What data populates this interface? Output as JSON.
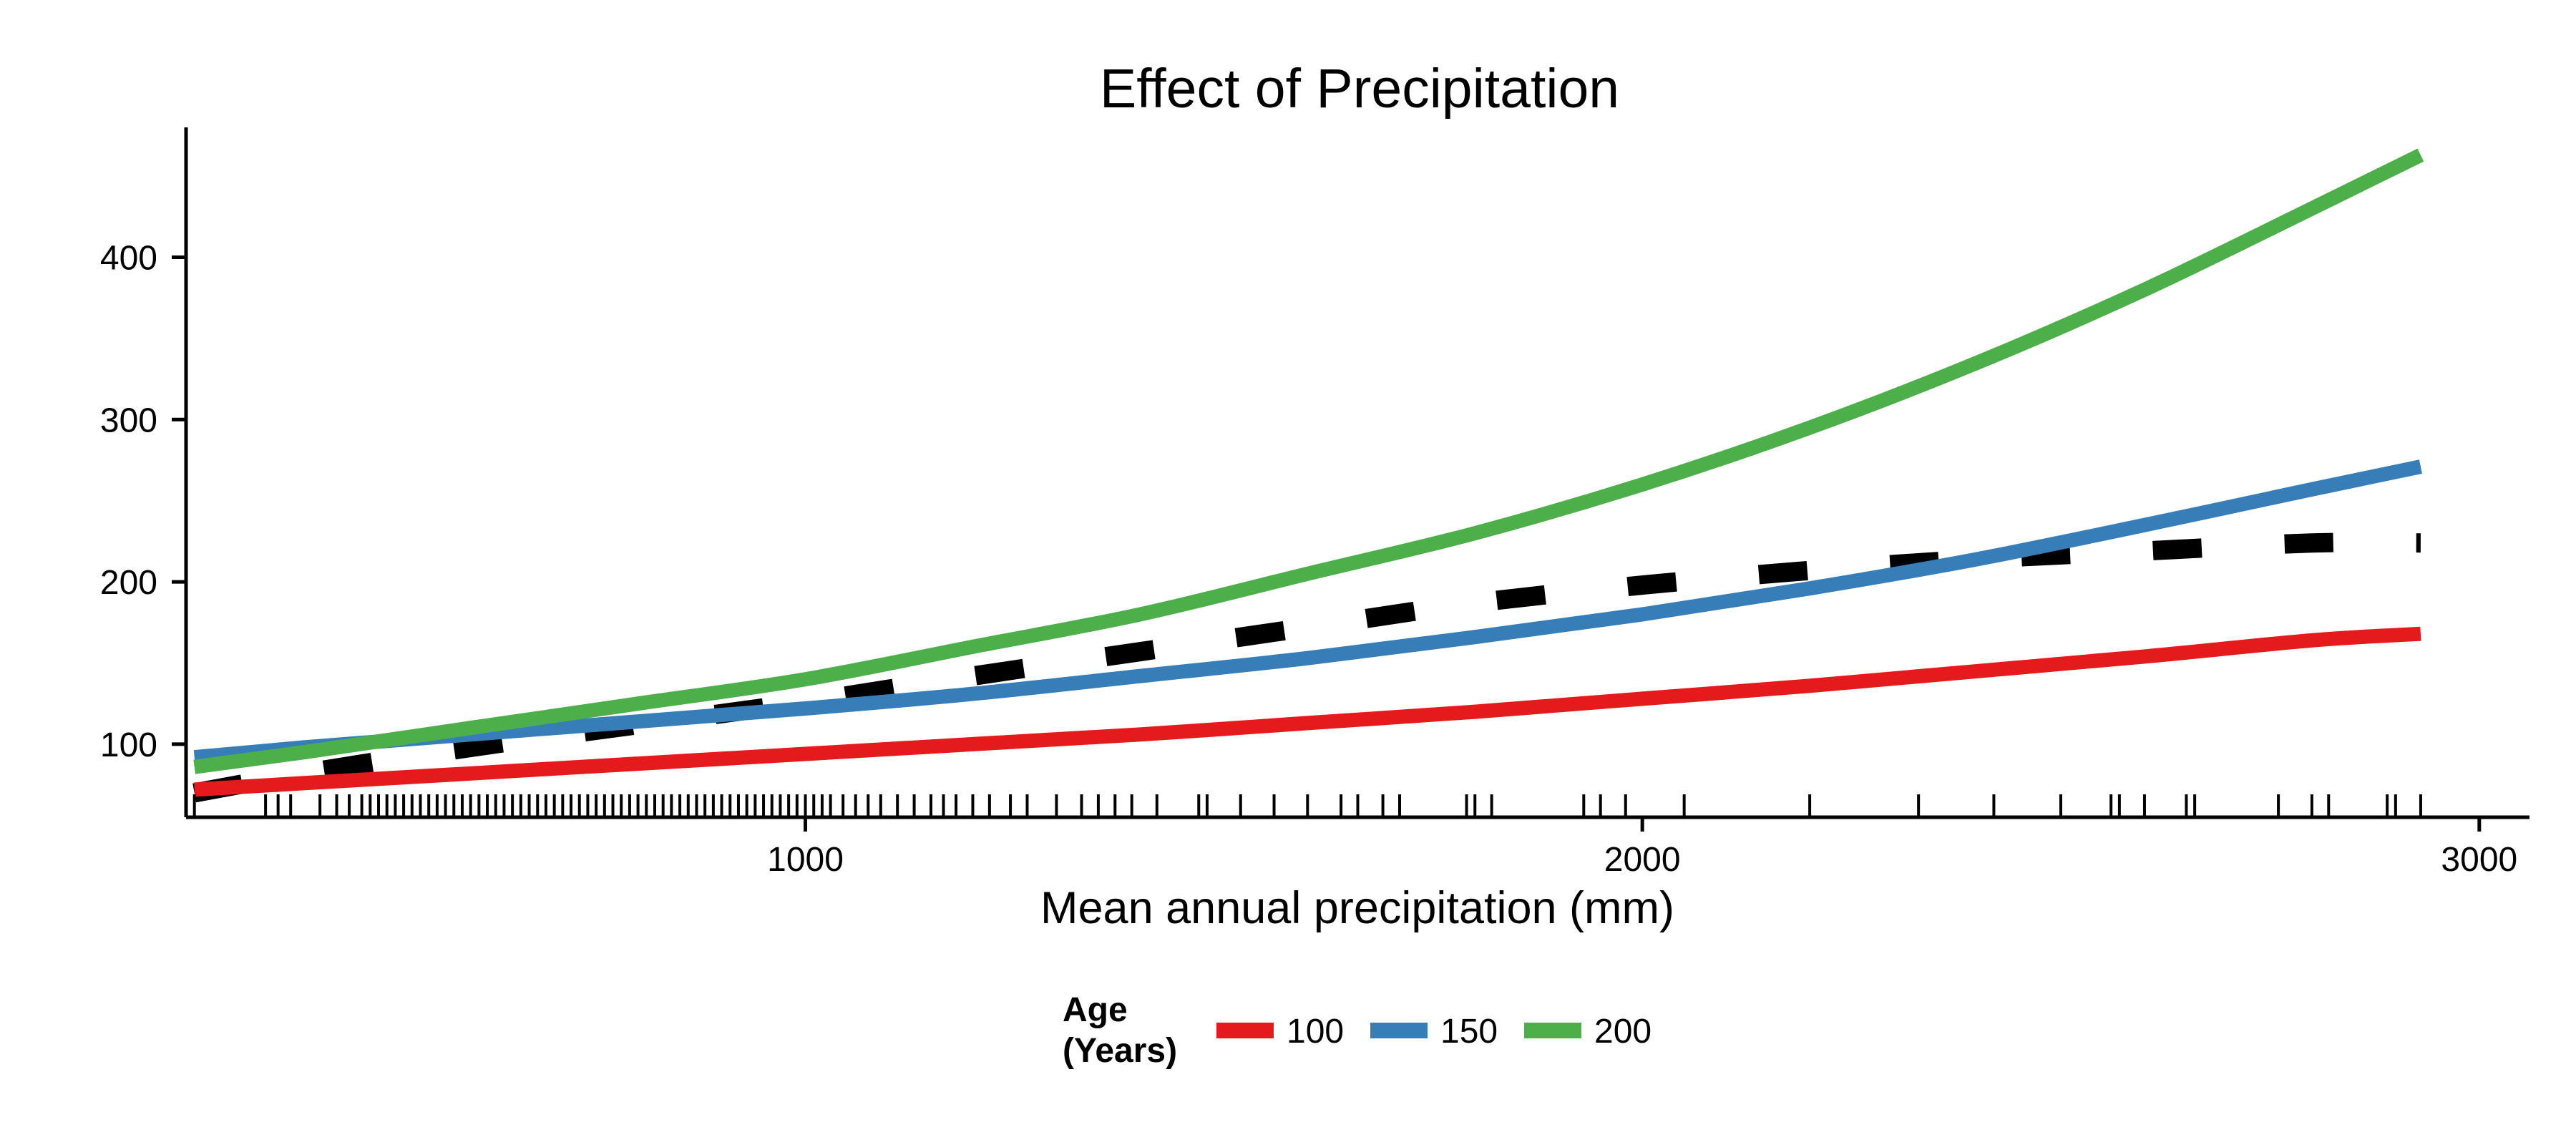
{
  "chart_data": {
    "type": "line",
    "title": "Effect of Precipitation",
    "xlabel": "Mean annual precipitation (mm)",
    "ylabel": "",
    "xlim": [
      260,
      3060
    ],
    "ylim": [
      55,
      480
    ],
    "x_ticks": [
      1000,
      2000,
      3000
    ],
    "y_ticks": [
      100,
      200,
      300,
      400
    ],
    "grid": false,
    "legend": {
      "title": "Age\n(Years)",
      "position": "bottom",
      "entries": [
        {
          "label": "100",
          "color": "#e41a1c"
        },
        {
          "label": "150",
          "color": "#377eb8"
        },
        {
          "label": "200",
          "color": "#4daf4a"
        }
      ]
    },
    "x": [
      270,
      400,
      600,
      800,
      1000,
      1200,
      1400,
      1600,
      1800,
      2000,
      2200,
      2400,
      2600,
      2800,
      2930
    ],
    "series": [
      {
        "name": "100",
        "color": "#e41a1c",
        "style": "solid",
        "values": [
          72,
          76,
          82,
          88,
          94,
          100,
          106,
          113,
          120,
          128,
          136,
          145,
          154,
          164,
          168
        ]
      },
      {
        "name": "150",
        "color": "#377eb8",
        "style": "solid",
        "values": [
          92,
          98,
          106,
          114,
          122,
          131,
          142,
          153,
          166,
          180,
          196,
          214,
          235,
          257,
          271
        ]
      },
      {
        "name": "200",
        "color": "#4daf4a",
        "style": "solid",
        "values": [
          86,
          95,
          110,
          125,
          140,
          160,
          180,
          205,
          230,
          260,
          295,
          335,
          380,
          430,
          463
        ]
      },
      {
        "name": "",
        "color": "#000000",
        "style": "dashed",
        "values": [
          70,
          82,
          98,
          112,
          126,
          142,
          157,
          172,
          187,
          198,
          207,
          214,
          219,
          224,
          224
        ]
      }
    ],
    "rug": [
      270,
      355,
      370,
      385,
      420,
      440,
      455,
      470,
      480,
      490,
      500,
      510,
      520,
      530,
      540,
      550,
      560,
      570,
      580,
      590,
      600,
      610,
      620,
      630,
      640,
      650,
      660,
      670,
      680,
      690,
      700,
      710,
      720,
      730,
      740,
      750,
      760,
      770,
      780,
      790,
      800,
      810,
      820,
      830,
      840,
      850,
      860,
      870,
      880,
      890,
      900,
      910,
      920,
      930,
      940,
      950,
      960,
      970,
      980,
      990,
      1000,
      1010,
      1020,
      1030,
      1045,
      1060,
      1075,
      1090,
      1110,
      1130,
      1150,
      1165,
      1180,
      1200,
      1220,
      1245,
      1265,
      1300,
      1330,
      1350,
      1370,
      1390,
      1420,
      1470,
      1480,
      1520,
      1560,
      1600,
      1640,
      1660,
      1690,
      1710,
      1790,
      1800,
      1820,
      1930,
      1950,
      1980,
      2050,
      2200,
      2330,
      2420,
      2500,
      2560,
      2570,
      2600,
      2650,
      2660,
      2760,
      2800,
      2820,
      2890,
      2900,
      2930
    ]
  }
}
